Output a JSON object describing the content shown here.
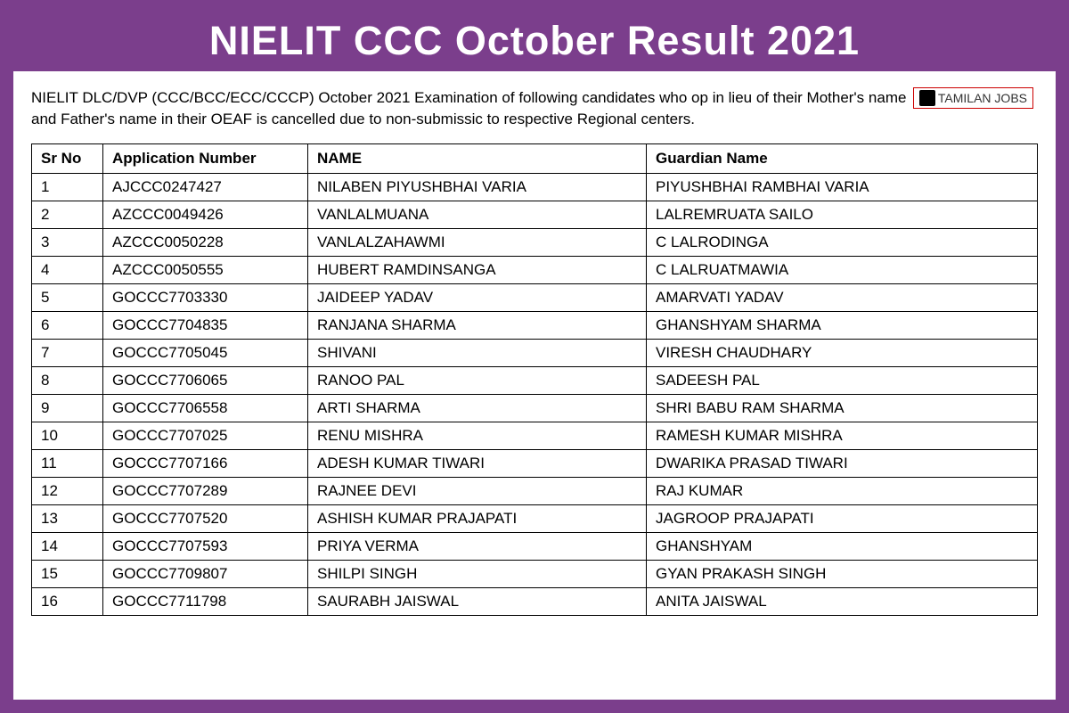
{
  "title": "NIELIT CCC October Result 2021",
  "notice": "NIELIT DLC/DVP (CCC/BCC/ECC/CCCP) October 2021 Examination of following candidates who op in lieu of their Mother's name and Father's name in their OEAF is cancelled due to non-submissic to respective Regional centers.",
  "logo_text": "TAMILAN JOBS",
  "table": {
    "columns": [
      "Sr No",
      "Application Number",
      "NAME",
      "Guardian Name"
    ],
    "rows": [
      [
        "1",
        "AJCCC0247427",
        "NILABEN PIYUSHBHAI VARIA",
        "PIYUSHBHAI RAMBHAI VARIA"
      ],
      [
        "2",
        "AZCCC0049426",
        "VANLALMUANA",
        "LALREMRUATA SAILO"
      ],
      [
        "3",
        "AZCCC0050228",
        "VANLALZAHAWMI",
        "C LALRODINGA"
      ],
      [
        "4",
        "AZCCC0050555",
        "HUBERT RAMDINSANGA",
        "C LALRUATMAWIA"
      ],
      [
        "5",
        "GOCCC7703330",
        "JAIDEEP YADAV",
        "AMARVATI YADAV"
      ],
      [
        "6",
        "GOCCC7704835",
        "RANJANA SHARMA",
        "GHANSHYAM  SHARMA"
      ],
      [
        "7",
        "GOCCC7705045",
        "SHIVANI",
        "VIRESH CHAUDHARY"
      ],
      [
        "8",
        "GOCCC7706065",
        "RANOO PAL",
        "SADEESH PAL"
      ],
      [
        "9",
        "GOCCC7706558",
        "ARTI SHARMA",
        "SHRI BABU RAM SHARMA"
      ],
      [
        "10",
        "GOCCC7707025",
        "RENU MISHRA",
        "RAMESH KUMAR MISHRA"
      ],
      [
        "11",
        "GOCCC7707166",
        "ADESH KUMAR TIWARI",
        "DWARIKA PRASAD TIWARI"
      ],
      [
        "12",
        "GOCCC7707289",
        "RAJNEE DEVI",
        "RAJ KUMAR"
      ],
      [
        "13",
        "GOCCC7707520",
        "ASHISH KUMAR PRAJAPATI",
        "JAGROOP PRAJAPATI"
      ],
      [
        "14",
        "GOCCC7707593",
        "PRIYA VERMA",
        "GHANSHYAM"
      ],
      [
        "15",
        "GOCCC7709807",
        "SHILPI SINGH",
        "GYAN PRAKASH SINGH"
      ],
      [
        "16",
        "GOCCC7711798",
        "SAURABH JAISWAL",
        "ANITA JAISWAL"
      ]
    ]
  },
  "styling": {
    "banner_bg": "#7b3e8c",
    "title_color": "#ffffff",
    "title_fontsize": 45,
    "content_bg": "#ffffff",
    "table_border": "#000000",
    "table_fontsize": 17,
    "notice_fontsize": 17,
    "logo_border": "#cc0000"
  }
}
